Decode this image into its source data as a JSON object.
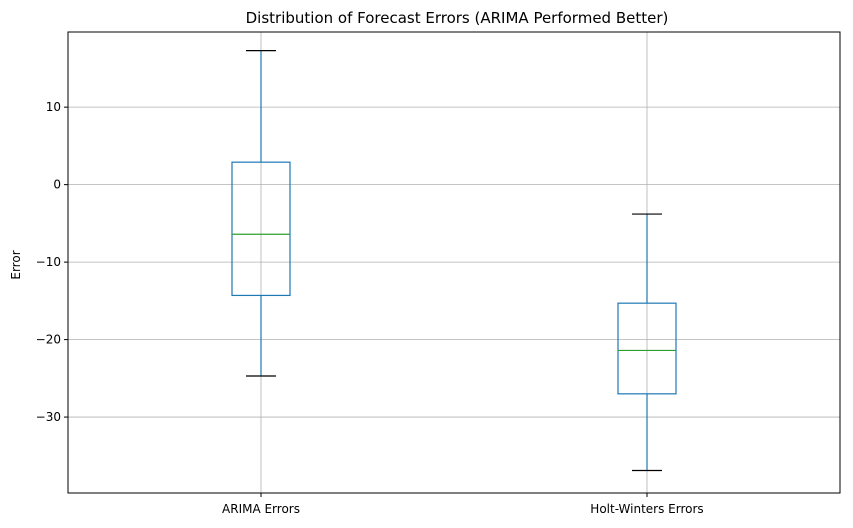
{
  "chart_data": {
    "type": "box",
    "title": "Distribution of Forecast Errors (ARIMA Performed Better)",
    "xlabel": "",
    "ylabel": "Error",
    "ylim": [
      -39.8,
      19.7
    ],
    "yticks": [
      -30,
      -20,
      -10,
      0,
      10
    ],
    "ytick_labels": [
      "−30",
      "−20",
      "−10",
      "0",
      "10"
    ],
    "grid": true,
    "categories": [
      "ARIMA Errors",
      "Holt-Winters Errors"
    ],
    "boxes": [
      {
        "category": "ARIMA Errors",
        "whisker_low": -24.7,
        "q1": -14.3,
        "median": -6.4,
        "q3": 2.9,
        "whisker_high": 17.3
      },
      {
        "category": "Holt-Winters Errors",
        "whisker_low": -36.9,
        "q1": -27.0,
        "median": -21.4,
        "q3": -15.3,
        "whisker_high": -3.8
      }
    ],
    "colors": {
      "box": "#1f77b4",
      "median": "#2ca02c",
      "whisker_cap": "#000000",
      "grid": "#b0b0b0",
      "axes": "#000000"
    }
  }
}
